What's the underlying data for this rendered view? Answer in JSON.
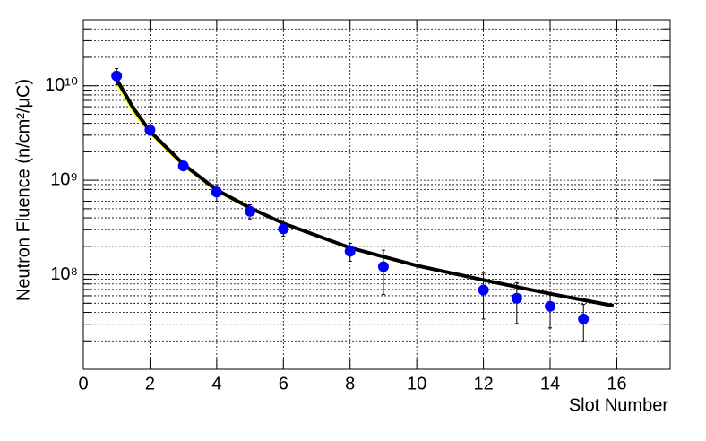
{
  "chart_data": {
    "type": "scatter",
    "xlabel": "Slot Number",
    "ylabel": "Neutron Fluence (n/cm²/μC)",
    "xlim": [
      0,
      17.6
    ],
    "xticks": [
      0,
      2,
      4,
      6,
      8,
      10,
      12,
      14,
      16
    ],
    "ylim": [
      10000000,
      50000000000
    ],
    "log_y": true,
    "grid": true,
    "yticks": [
      {
        "value": 100000000,
        "label": "10⁸"
      },
      {
        "value": 1000000000,
        "label": "10⁹"
      },
      {
        "value": 10000000000,
        "label": "10¹⁰"
      }
    ],
    "yminorticks": [
      20000000,
      30000000,
      40000000,
      50000000,
      60000000,
      70000000,
      80000000,
      90000000,
      200000000,
      300000000,
      400000000,
      500000000,
      600000000,
      700000000,
      800000000,
      900000000,
      2000000000,
      3000000000,
      4000000000,
      5000000000,
      6000000000,
      7000000000,
      8000000000,
      9000000000,
      20000000000,
      30000000000,
      40000000000,
      50000000000
    ],
    "series": [
      {
        "color": "#0000ff",
        "x": [
          1,
          2,
          3,
          4,
          5,
          6,
          8,
          9,
          12,
          13,
          14,
          15
        ],
        "values": [
          12700000000,
          3400000000,
          1420000000,
          750000000,
          470000000,
          306000000,
          177000000,
          122000000,
          69000000,
          56500000,
          46400000,
          34100000
        ],
        "errors": [
          2500000000,
          200000000,
          150000000,
          150000000,
          80000000,
          50000000,
          38000000,
          60000000,
          35000000,
          26000000,
          19000000,
          14500000
        ]
      }
    ],
    "fit": {
      "color": "#000000",
      "band_color": "#ffff00",
      "x": [
        1,
        1.5,
        2,
        3,
        4,
        5,
        6,
        8,
        10,
        12,
        14,
        15.9
      ],
      "values": [
        11700000000,
        5800000000,
        3300000000,
        1480000000,
        790000000,
        510000000,
        350000000,
        193000000,
        125000000,
        88000000,
        63000000,
        47000000
      ],
      "lower": [
        10000000000,
        5000000000,
        3000000000,
        1380000000,
        740000000,
        485000000,
        335000000,
        185000000,
        120000000,
        85000000,
        61000000,
        45500000
      ],
      "upper": [
        12300000000,
        6000000000,
        3400000000,
        1510000000,
        805000000,
        520000000,
        357000000,
        197000000,
        127500000,
        89800000,
        64300000,
        48000000
      ]
    }
  }
}
